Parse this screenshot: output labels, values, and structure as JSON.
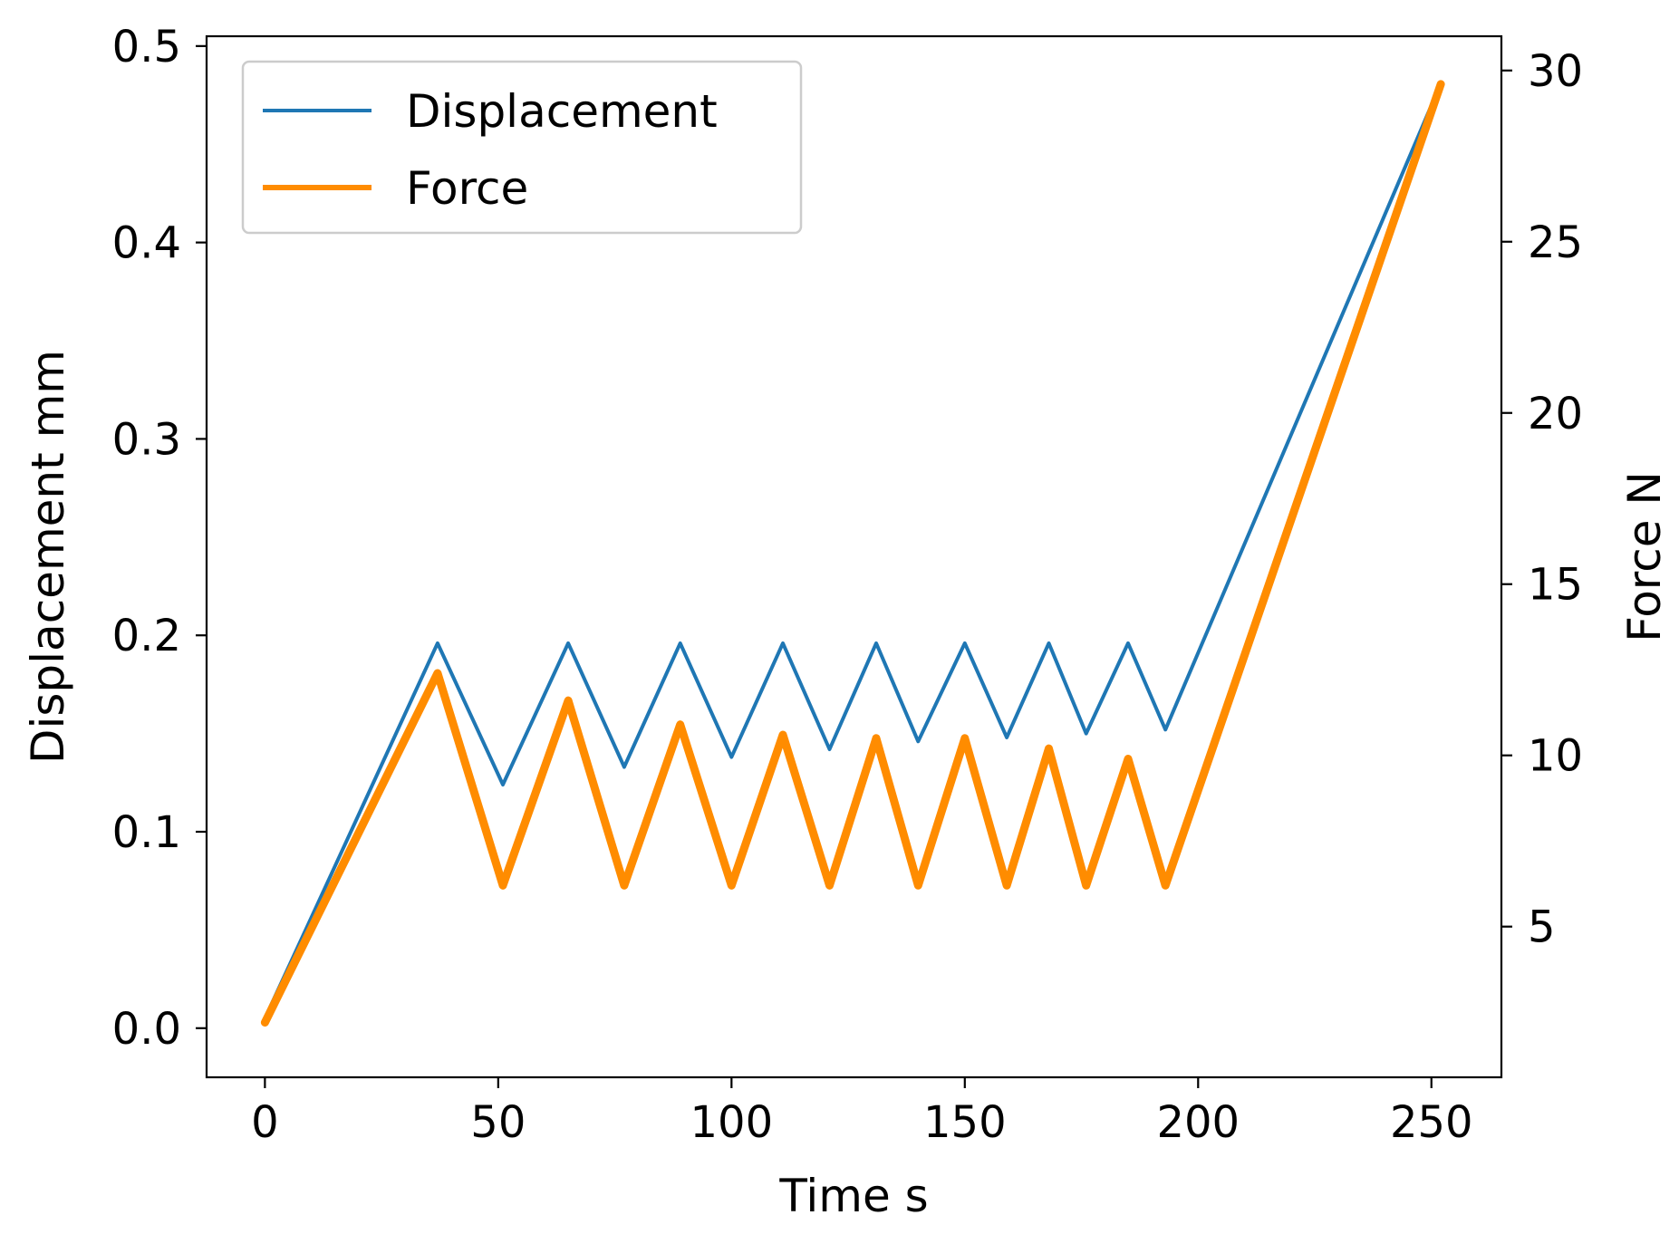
{
  "chart_data": {
    "type": "line",
    "xlabel": "Time s",
    "ylabel_left": "Displacement mm",
    "ylabel_right": "Force N",
    "xlim": [
      -12.5,
      265
    ],
    "ylim_left": [
      -0.025,
      0.505
    ],
    "ylim_right": [
      0.6,
      31.0
    ],
    "x_ticks": [
      0,
      50,
      100,
      150,
      200,
      250
    ],
    "y_left_ticks": [
      0.0,
      0.1,
      0.2,
      0.3,
      0.4,
      0.5
    ],
    "y_left_tick_labels": [
      "0.0",
      "0.1",
      "0.2",
      "0.3",
      "0.4",
      "0.5"
    ],
    "y_right_ticks": [
      5,
      10,
      15,
      20,
      25,
      30
    ],
    "grid": false,
    "legend": {
      "position": "top-left"
    },
    "colors": {
      "displacement": "#1f77b4",
      "force": "#ff8c00"
    },
    "series": [
      {
        "name": "Displacement",
        "axis": "left",
        "x": [
          0,
          37,
          51,
          65,
          77,
          89,
          100,
          111,
          121,
          131,
          140,
          150,
          159,
          168,
          176,
          185,
          193,
          252
        ],
        "y": [
          0.005,
          0.196,
          0.124,
          0.196,
          0.133,
          0.196,
          0.138,
          0.196,
          0.142,
          0.196,
          0.146,
          0.196,
          0.148,
          0.196,
          0.15,
          0.196,
          0.152,
          0.481
        ]
      },
      {
        "name": "Force",
        "axis": "right",
        "x": [
          0,
          37,
          51,
          65,
          77,
          89,
          100,
          111,
          121,
          131,
          140,
          150,
          159,
          168,
          176,
          185,
          193,
          252
        ],
        "y": [
          2.2,
          12.4,
          6.2,
          11.6,
          6.2,
          10.9,
          6.2,
          10.6,
          6.2,
          10.5,
          6.2,
          10.5,
          6.2,
          10.2,
          6.2,
          9.9,
          6.2,
          29.6
        ]
      }
    ]
  }
}
